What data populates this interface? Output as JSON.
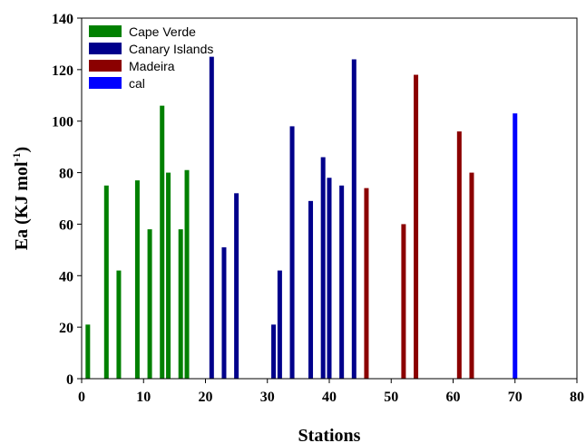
{
  "chart_data": {
    "type": "bar",
    "xlabel": "Stations",
    "ylabel_main": "Ea (KJ mol",
    "ylabel_sup": "-1",
    "ylabel_close": ")",
    "xlim": [
      0,
      80
    ],
    "ylim": [
      0,
      140
    ],
    "xticks": [
      0,
      10,
      20,
      30,
      40,
      50,
      60,
      70,
      80
    ],
    "yticks": [
      0,
      20,
      40,
      60,
      80,
      100,
      120,
      140
    ],
    "grid": false,
    "legend_position": "top-left",
    "series": [
      {
        "name": "Cape Verde",
        "color": "#008000",
        "x": [
          1,
          4,
          6,
          9,
          11,
          13,
          14,
          16,
          17
        ],
        "values": [
          21,
          75,
          42,
          77,
          58,
          106,
          80,
          58,
          81
        ]
      },
      {
        "name": "Canary Islands",
        "color": "#00008b",
        "x": [
          21,
          23,
          25,
          31,
          32,
          34,
          37,
          39,
          40,
          42,
          44
        ],
        "values": [
          125,
          51,
          72,
          21,
          42,
          98,
          69,
          86,
          78,
          75,
          124
        ]
      },
      {
        "name": "Madeira",
        "color": "#8b0000",
        "x": [
          46,
          52,
          54,
          61,
          63
        ],
        "values": [
          74,
          60,
          118,
          96,
          80
        ]
      },
      {
        "name": "cal",
        "color": "#0000ff",
        "x": [
          70
        ],
        "values": [
          103
        ]
      }
    ]
  }
}
